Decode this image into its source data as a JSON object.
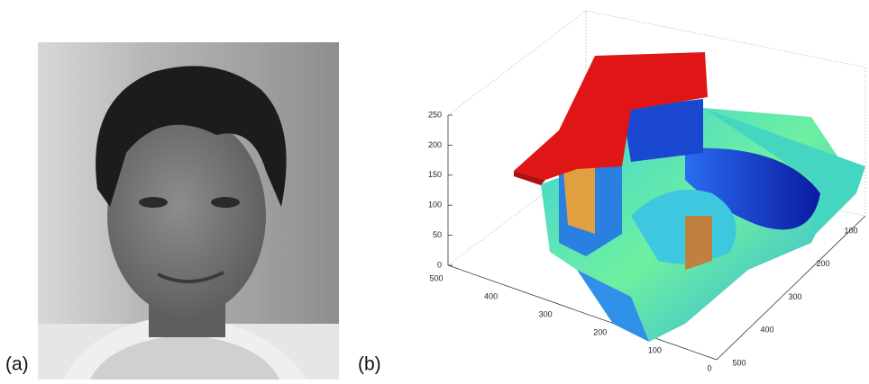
{
  "figure": {
    "panels": [
      {
        "label": "(a)"
      },
      {
        "label": "(b)",
        "plot": {
          "zticks": [
            "0",
            "50",
            "100",
            "150",
            "200",
            "250"
          ],
          "xticks": [
            "500",
            "400",
            "300",
            "200",
            "100",
            "0"
          ],
          "yticks": [
            "100",
            "200",
            "300",
            "400",
            "500"
          ]
        }
      }
    ]
  }
}
